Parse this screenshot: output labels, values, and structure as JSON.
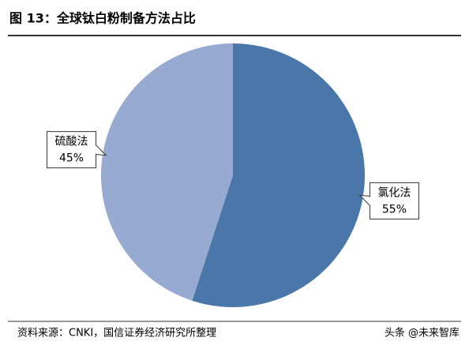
{
  "chart_data": {
    "type": "pie",
    "title": "图 13：全球钛白粉制备方法占比",
    "categories": [
      "氯化法",
      "硫酸法"
    ],
    "values": [
      55,
      45
    ],
    "value_labels": [
      "55%",
      "45%"
    ],
    "colors": [
      "#4a76aa",
      "#96aad2"
    ],
    "source": "资料来源：CNKI，国信证券经济研究所整理",
    "watermark": "头条 @未来智库"
  }
}
